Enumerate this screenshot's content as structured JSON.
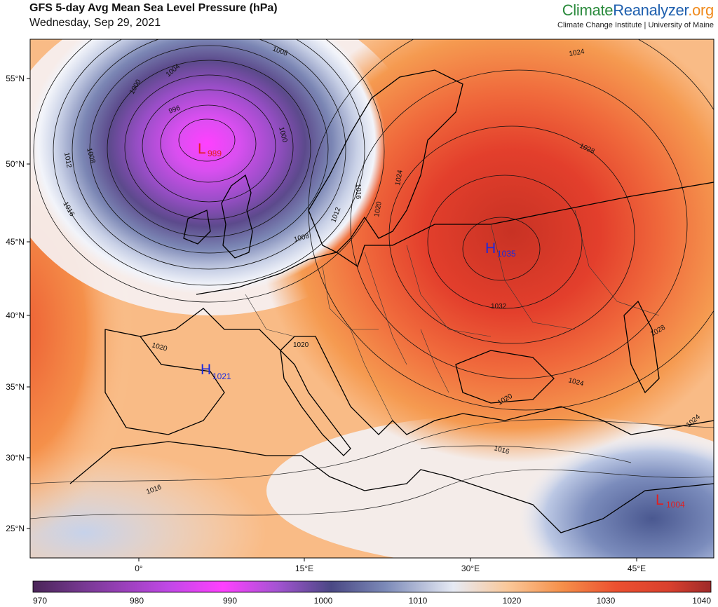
{
  "header": {
    "title": "GFS 5-day Avg Mean Sea Level Pressure (hPa)",
    "subtitle": "Wednesday, Sep 29, 2021",
    "brand_part1": "Climate",
    "brand_part2": "Reanalyzer",
    "brand_part3": ".org",
    "brand_sub": "Climate Change Institute | University of Maine"
  },
  "map": {
    "lat_labels": [
      "55°N",
      "50°N",
      "45°N",
      "40°N",
      "35°N",
      "30°N",
      "25°N"
    ],
    "lon_labels": [
      "0°",
      "15°E",
      "30°E",
      "45°E"
    ],
    "isobar_labels": [
      "1008",
      "1004",
      "1000",
      "996",
      "1012",
      "1008",
      "1016",
      "1000",
      "1008",
      "1012",
      "1016",
      "1020",
      "1024",
      "1028",
      "1032",
      "1028",
      "1024",
      "1020",
      "1016",
      "1016",
      "1024",
      "1020",
      "1020",
      "1024"
    ],
    "systems": [
      {
        "type": "L",
        "value": "989",
        "color": "#e02020"
      },
      {
        "type": "H",
        "value": "1035",
        "color": "#1a2ae0"
      },
      {
        "type": "H",
        "value": "1021",
        "color": "#1a2ae0"
      },
      {
        "type": "L",
        "value": "1004",
        "color": "#e02020"
      }
    ]
  },
  "colorbar": {
    "labels": [
      "970",
      "980",
      "990",
      "1000",
      "1010",
      "1020",
      "1030",
      "1040"
    ]
  },
  "colors": {
    "low_deep": "#5a2a78",
    "low_mid": "#b64ee0",
    "low_core": "#ff40ff",
    "neutral": "#f5f5f7",
    "high_light": "#fcd2a8",
    "high_mid": "#f59a50",
    "high_core": "#d23828"
  }
}
